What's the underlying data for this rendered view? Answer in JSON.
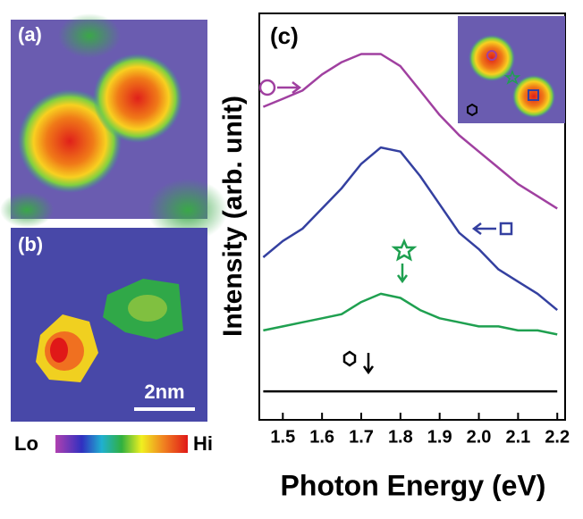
{
  "panels": {
    "a": "(a)",
    "b": "(b)",
    "scale_bar": "2nm",
    "colorbar_low": "Lo",
    "colorbar_high": "Hi"
  },
  "chart_data": {
    "type": "line",
    "label": "(c)",
    "xlabel": "Photon Energy (eV)",
    "ylabel": "Intensity (arb. unit)",
    "x": [
      1.45,
      1.5,
      1.55,
      1.6,
      1.65,
      1.7,
      1.75,
      1.8,
      1.85,
      1.9,
      1.95,
      2.0,
      2.05,
      2.1,
      2.15,
      2.2
    ],
    "series": [
      {
        "color": "#a040a0",
        "values": [
          77,
          79,
          81,
          85,
          88,
          90,
          90,
          87,
          81,
          75,
          70,
          66,
          62,
          58,
          55,
          52
        ]
      },
      {
        "color": "#3440a0",
        "values": [
          40,
          44,
          47,
          52,
          57,
          63,
          67,
          66,
          60,
          53,
          46,
          42,
          37,
          34,
          31,
          27
        ]
      },
      {
        "color": "#1fa050",
        "values": [
          22,
          23,
          24,
          25,
          26,
          29,
          31,
          30,
          27,
          25,
          24,
          23,
          23,
          22,
          22,
          21
        ]
      },
      {
        "color": "#000000",
        "values": [
          7,
          7,
          7,
          7,
          7,
          7,
          7,
          7,
          7,
          7,
          7,
          7,
          7,
          7,
          7,
          7
        ]
      }
    ],
    "xlim": [
      1.44,
      2.22
    ],
    "ylim": [
      0,
      100
    ],
    "xticks": [
      1.5,
      1.6,
      1.7,
      1.8,
      1.9,
      {
        "value": 2.0,
        "label": "2.0"
      },
      2.1,
      2.2
    ]
  }
}
